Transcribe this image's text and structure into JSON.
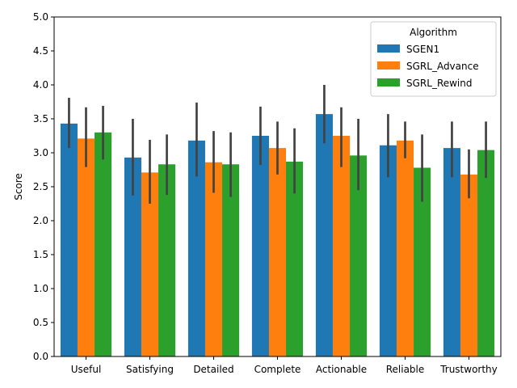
{
  "chart_data": {
    "type": "bar",
    "title": "",
    "xlabel": "",
    "ylabel": "Score",
    "ylim": [
      0,
      5
    ],
    "yticks": [
      "0.0",
      "0.5",
      "1.0",
      "1.5",
      "2.0",
      "2.5",
      "3.0",
      "3.5",
      "4.0",
      "4.5",
      "5.0"
    ],
    "categories": [
      "Useful",
      "Satisfying",
      "Detailed",
      "Complete",
      "Actionable",
      "Reliable",
      "Trustworthy"
    ],
    "legend": {
      "title": "Algorithm",
      "placement": "top-right"
    },
    "series": [
      {
        "name": "SGEN1",
        "color": "#1f77b4",
        "values": [
          3.43,
          2.93,
          3.18,
          3.25,
          3.57,
          3.11,
          3.07
        ],
        "error_low": [
          3.07,
          2.37,
          2.65,
          2.82,
          3.14,
          2.64,
          2.64
        ],
        "error_high": [
          3.81,
          3.5,
          3.74,
          3.68,
          4.0,
          3.57,
          3.46
        ]
      },
      {
        "name": "SGRL_Advance",
        "color": "#ff7f0e",
        "values": [
          3.21,
          2.71,
          2.86,
          3.07,
          3.25,
          3.18,
          2.68
        ],
        "error_low": [
          2.79,
          2.25,
          2.41,
          2.68,
          2.79,
          2.92,
          2.33
        ],
        "error_high": [
          3.67,
          3.19,
          3.32,
          3.46,
          3.67,
          3.46,
          3.05
        ]
      },
      {
        "name": "SGRL_Rewind",
        "color": "#2ca02c",
        "values": [
          3.3,
          2.83,
          2.83,
          2.87,
          2.96,
          2.78,
          3.04
        ],
        "error_low": [
          2.9,
          2.38,
          2.35,
          2.4,
          2.45,
          2.28,
          2.63
        ],
        "error_high": [
          3.69,
          3.27,
          3.3,
          3.36,
          3.5,
          3.27,
          3.46
        ]
      }
    ]
  }
}
